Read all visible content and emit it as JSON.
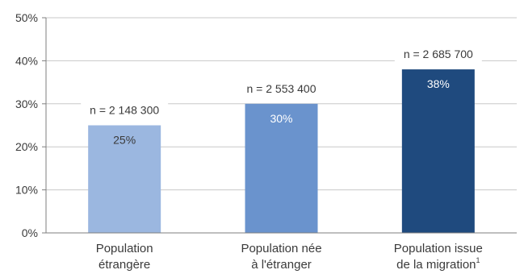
{
  "chart_data": {
    "type": "bar",
    "categories": [
      [
        "Population",
        "étrangère"
      ],
      [
        "Population née",
        "à l'étranger"
      ],
      [
        "Population issue",
        "de la migration"
      ]
    ],
    "category_superscripts": [
      "",
      "",
      "1"
    ],
    "values": [
      25,
      30,
      38
    ],
    "value_labels": [
      "25%",
      "30%",
      "38%"
    ],
    "annotations": [
      "n = 2 148 300",
      "n = 2 553 400",
      "n = 2 685 700"
    ],
    "y_ticks": [
      0,
      10,
      20,
      30,
      40,
      50
    ],
    "y_tick_labels": [
      "0%",
      "10%",
      "20%",
      "30%",
      "40%",
      "50%"
    ],
    "ylim": [
      0,
      50
    ],
    "grid": true,
    "colors": {
      "bars": [
        "#9bb7e0",
        "#6a93cd",
        "#1f4a7e"
      ],
      "value_labels": [
        "#3a3a3a",
        "#ffffff",
        "#ffffff"
      ],
      "grid": "#c8c8c8",
      "axis": "#7f7f7f",
      "text": "#3a3a3a"
    }
  }
}
